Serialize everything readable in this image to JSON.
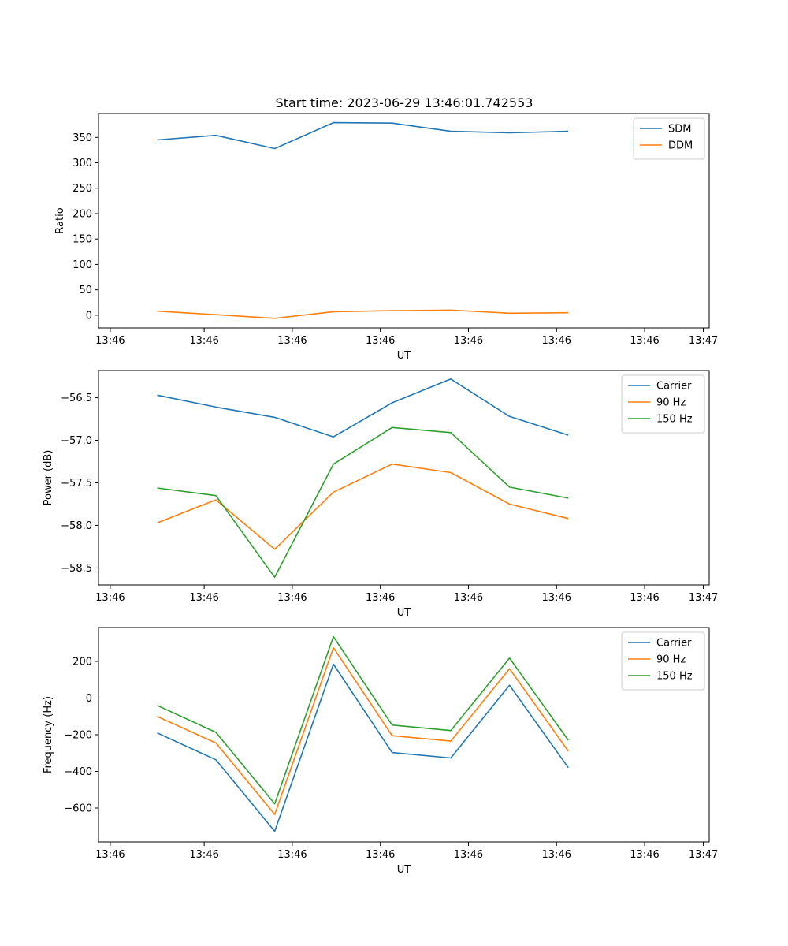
{
  "figure": {
    "title": "Start time: 2023-06-29 13:46:01.742553"
  },
  "colors": {
    "blue": "#1f77b4",
    "orange": "#ff7f0e",
    "green": "#2ca02c"
  },
  "chart_data": [
    {
      "type": "line",
      "title": "Start time: 2023-06-29 13:46:01.742553",
      "xlabel": "UT",
      "ylabel": "Ratio",
      "x": [
        1,
        2,
        3,
        4,
        5,
        6,
        7,
        8
      ],
      "xlim": [
        0,
        10.4
      ],
      "xticks": [
        0.2,
        1.8,
        3.3,
        4.8,
        6.3,
        7.8,
        9.3,
        10.3
      ],
      "xtick_labels": [
        "13:46",
        "13:46",
        "13:46",
        "13:46",
        "13:46",
        "13:46",
        "13:46",
        "13:47"
      ],
      "ylim": [
        -25,
        397
      ],
      "yticks": [
        0,
        50,
        100,
        150,
        200,
        250,
        300,
        350
      ],
      "ytick_labels": [
        "0",
        "50",
        "100",
        "150",
        "200",
        "250",
        "300",
        "350"
      ],
      "legend": "top-right",
      "grid": false,
      "series": [
        {
          "name": "SDM",
          "color": "blue",
          "values": [
            345,
            354,
            328,
            379,
            378,
            362,
            359,
            362
          ]
        },
        {
          "name": "DDM",
          "color": "orange",
          "values": [
            8,
            1,
            -6,
            7,
            9,
            10,
            4,
            5
          ]
        }
      ]
    },
    {
      "type": "line",
      "xlabel": "UT",
      "ylabel": "Power (dB)",
      "x": [
        1,
        2,
        3,
        4,
        5,
        6,
        7,
        8
      ],
      "xlim": [
        0,
        10.4
      ],
      "xticks": [
        0.2,
        1.8,
        3.3,
        4.8,
        6.3,
        7.8,
        9.3,
        10.3
      ],
      "xtick_labels": [
        "13:46",
        "13:46",
        "13:46",
        "13:46",
        "13:46",
        "13:46",
        "13:46",
        "13:47"
      ],
      "ylim": [
        -58.7,
        -56.18
      ],
      "yticks": [
        -58.5,
        -58.0,
        -57.5,
        -57.0,
        -56.5
      ],
      "ytick_labels": [
        "−58.5",
        "−58.0",
        "−57.5",
        "−57.0",
        "−56.5"
      ],
      "legend": "top-right",
      "grid": false,
      "series": [
        {
          "name": "Carrier",
          "color": "blue",
          "values": [
            -56.47,
            -56.61,
            -56.73,
            -56.96,
            -56.56,
            -56.28,
            -56.72,
            -56.94
          ]
        },
        {
          "name": "90 Hz",
          "color": "orange",
          "values": [
            -57.97,
            -57.7,
            -58.28,
            -57.61,
            -57.28,
            -57.38,
            -57.75,
            -57.92
          ]
        },
        {
          "name": "150 Hz",
          "color": "green",
          "values": [
            -57.56,
            -57.65,
            -58.61,
            -57.28,
            -56.85,
            -56.91,
            -57.55,
            -57.68
          ]
        }
      ]
    },
    {
      "type": "line",
      "xlabel": "UT",
      "ylabel": "Frequency (Hz)",
      "x": [
        1,
        2,
        3,
        4,
        5,
        6,
        7,
        8
      ],
      "xlim": [
        0,
        10.4
      ],
      "xticks": [
        0.2,
        1.8,
        3.3,
        4.8,
        6.3,
        7.8,
        9.3,
        10.3
      ],
      "xtick_labels": [
        "13:46",
        "13:46",
        "13:46",
        "13:46",
        "13:46",
        "13:46",
        "13:46",
        "13:47"
      ],
      "ylim": [
        -785,
        385
      ],
      "yticks": [
        -600,
        -400,
        -200,
        0,
        200
      ],
      "ytick_labels": [
        "−600",
        "−400",
        "−200",
        "0",
        "200"
      ],
      "legend": "top-right",
      "grid": false,
      "series": [
        {
          "name": "Carrier",
          "color": "blue",
          "values": [
            -190,
            -337,
            -727,
            185,
            -297,
            -327,
            70,
            -380
          ]
        },
        {
          "name": "90 Hz",
          "color": "orange",
          "values": [
            -100,
            -245,
            -635,
            275,
            -205,
            -235,
            160,
            -290
          ]
        },
        {
          "name": "150 Hz",
          "color": "green",
          "values": [
            -40,
            -187,
            -577,
            335,
            -147,
            -177,
            218,
            -230
          ]
        }
      ]
    }
  ]
}
